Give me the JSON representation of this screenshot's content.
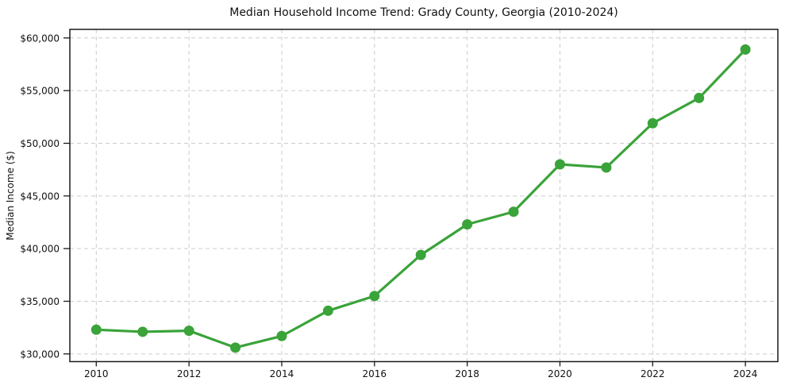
{
  "chart_data": {
    "type": "line",
    "title": "Median Household Income Trend: Grady County, Georgia (2010-2024)",
    "xlabel": "",
    "ylabel": "Median Income ($)",
    "x": [
      2010,
      2011,
      2012,
      2013,
      2014,
      2015,
      2016,
      2017,
      2018,
      2019,
      2020,
      2021,
      2022,
      2023,
      2024
    ],
    "series": [
      {
        "name": "Median Household Income",
        "values": [
          32300,
          32100,
          32200,
          30600,
          31700,
          34100,
          35500,
          39400,
          42300,
          43500,
          48000,
          47700,
          51900,
          54300,
          58900
        ]
      }
    ],
    "xlim": [
      2009.43,
      2024.7
    ],
    "ylim": [
      29270,
      60815
    ],
    "x_ticks": {
      "values": [
        2010,
        2012,
        2014,
        2016,
        2018,
        2020,
        2022,
        2024
      ],
      "labels": [
        "2010",
        "2012",
        "2014",
        "2016",
        "2018",
        "2020",
        "2022",
        "2024"
      ]
    },
    "y_ticks": {
      "values": [
        30000,
        35000,
        40000,
        45000,
        50000,
        55000,
        60000
      ],
      "labels": [
        "$30,000",
        "$35,000",
        "$40,000",
        "$45,000",
        "$50,000",
        "$55,000",
        "$60,000"
      ]
    },
    "grid": true,
    "legend": "none",
    "styles": {
      "line_color": "#3aa33a",
      "marker_color": "#3aa33a",
      "grid_color": "#cccccc",
      "axis_color": "#1a1a1a",
      "text_color": "#111111"
    }
  }
}
